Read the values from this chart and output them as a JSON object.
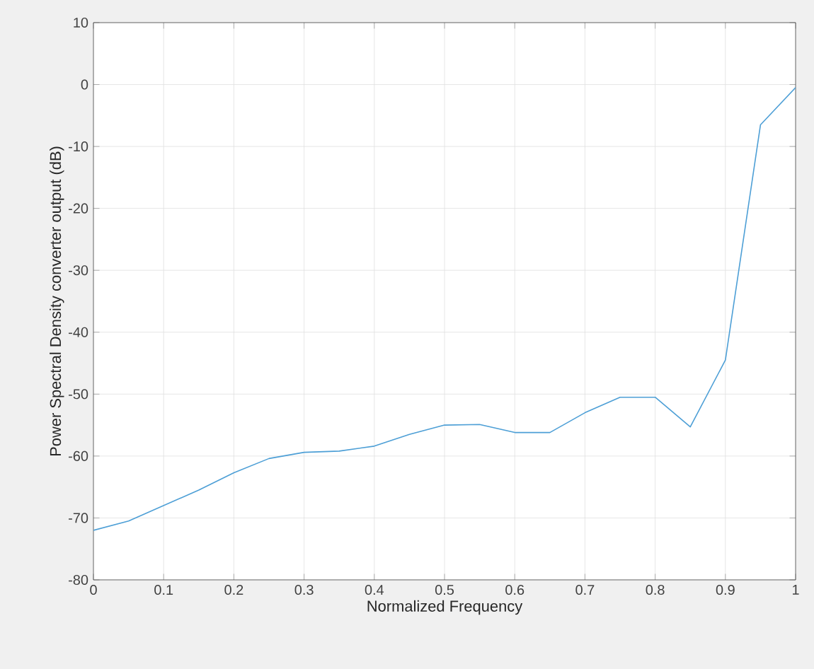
{
  "chart_data": {
    "type": "line",
    "xlabel": "Normalized Frequency",
    "ylabel": "Power Spectral Density converter output (dB)",
    "x": [
      0,
      0.05,
      0.1,
      0.15,
      0.2,
      0.25,
      0.3,
      0.35,
      0.4,
      0.45,
      0.5,
      0.55,
      0.6,
      0.65,
      0.7,
      0.75,
      0.8,
      0.85,
      0.9,
      0.95,
      1
    ],
    "series": [
      {
        "color": "#4d9fd6",
        "values": [
          -72,
          -70.5,
          -68,
          -65.5,
          -62.7,
          -60.4,
          -59.4,
          -59.2,
          -58.4,
          -56.5,
          -55,
          -54.9,
          -56.2,
          -56.2,
          -53,
          -50.5,
          -50.5,
          -55.3,
          -44.5,
          -6.5,
          -0.5
        ]
      }
    ],
    "xlim": [
      0,
      1
    ],
    "ylim": [
      -80,
      10
    ],
    "xticks": [
      0,
      0.1,
      0.2,
      0.3,
      0.4,
      0.5,
      0.6,
      0.7,
      0.8,
      0.9,
      1
    ],
    "yticks": [
      -80,
      -70,
      -60,
      -50,
      -40,
      -30,
      -20,
      -10,
      0,
      10
    ],
    "grid": true,
    "marker": "none",
    "line_style": "solid"
  }
}
